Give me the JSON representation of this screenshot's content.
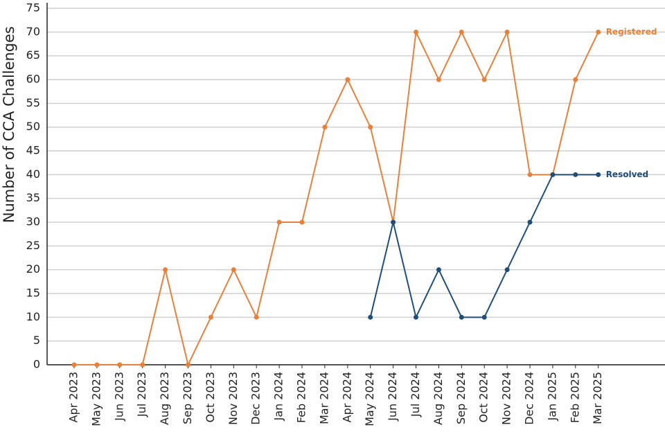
{
  "chart_data": {
    "type": "line",
    "y_label": "Number of CCA Challenges",
    "categories": [
      "Apr 2023",
      "May 2023",
      "Jun 2023",
      "Jul 2023",
      "Aug 2023",
      "Sep 2023",
      "Oct 2023",
      "Nov 2023",
      "Dec 2023",
      "Jan 2024",
      "Feb 2024",
      "Mar 2024",
      "Apr 2024",
      "May 2024",
      "Jun 2024",
      "Jul 2024",
      "Aug 2024",
      "Sep 2024",
      "Oct 2024",
      "Nov 2024",
      "Dec 2024",
      "Jan 2025",
      "Feb 2025",
      "Mar 2025"
    ],
    "series": [
      {
        "name": "Registered",
        "color": "#e8803a",
        "values": [
          0,
          0,
          0,
          0,
          20,
          0,
          10,
          20,
          10,
          30,
          30,
          50,
          60,
          50,
          30,
          70,
          60,
          70,
          60,
          70,
          40,
          40,
          60,
          70
        ]
      },
      {
        "name": "Resolved",
        "color": "#1f4e79",
        "values": [
          null,
          null,
          null,
          null,
          null,
          null,
          null,
          null,
          null,
          null,
          null,
          null,
          null,
          10,
          30,
          10,
          20,
          10,
          10,
          20,
          30,
          40,
          40,
          40
        ]
      }
    ],
    "ylim": [
      0,
      75
    ],
    "yticks": [
      0,
      5,
      10,
      15,
      20,
      25,
      30,
      35,
      40,
      45,
      50,
      55,
      60,
      65,
      70,
      75
    ],
    "grid": true
  }
}
